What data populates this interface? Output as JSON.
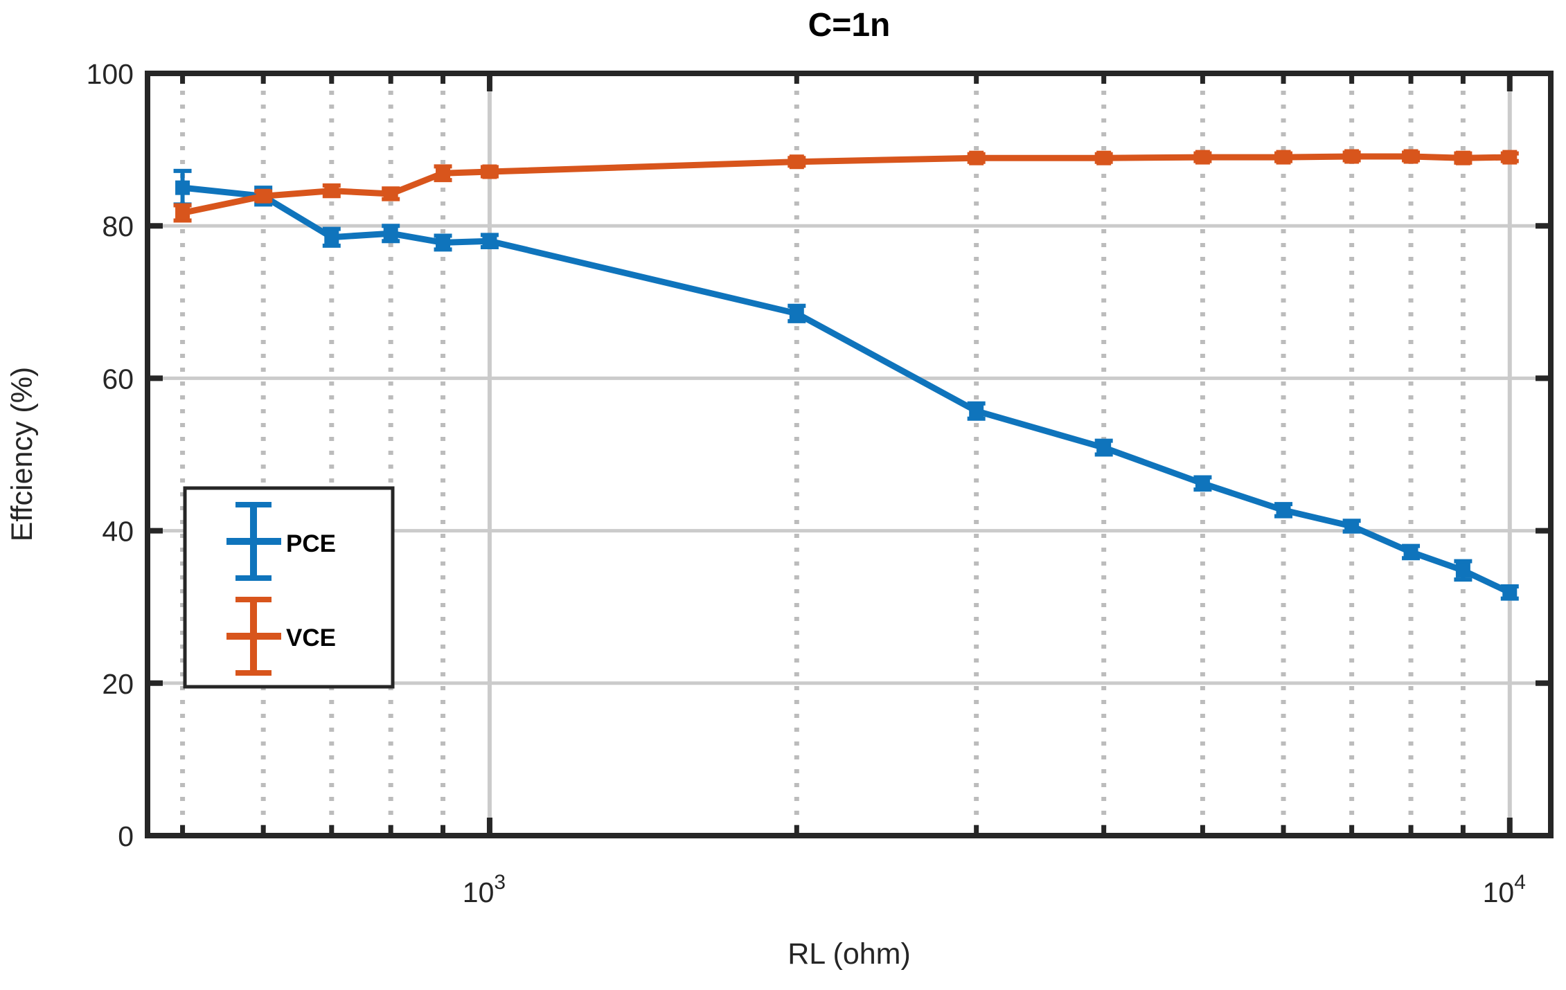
{
  "title": "C=1n",
  "xlabel": "RL (ohm)",
  "ylabel": "Effciency (%)",
  "legend": {
    "items": [
      {
        "label": "PCE",
        "color": "#0f74bc"
      },
      {
        "label": "VCE",
        "color": "#d8551c"
      }
    ]
  },
  "axis": {
    "ytick_labels": [
      "0",
      "20",
      "40",
      "60",
      "80",
      "100"
    ],
    "xtick_labels": [
      {
        "base": "10",
        "exp": "3"
      },
      {
        "base": "10",
        "exp": "4"
      }
    ]
  },
  "colors": {
    "pce": "#0f74bc",
    "vce": "#d8551c",
    "axis": "#262626",
    "grid_minor": "#bcbcbc",
    "grid_major": "#cbcbcb",
    "background": "#ffffff",
    "title_text": "#000000"
  },
  "chart_data": {
    "type": "line",
    "title": "C=1n",
    "xlabel": "RL (ohm)",
    "ylabel": "Effciency (%)",
    "x_scale": "log",
    "xlim": [
      462,
      10970
    ],
    "ylim": [
      0,
      100
    ],
    "grid": true,
    "legend_position": "left-middle",
    "x": [
      500,
      600,
      700,
      800,
      900,
      1000,
      2000,
      3000,
      4000,
      5000,
      6000,
      7000,
      8000,
      9000,
      10000
    ],
    "yticks": [
      0,
      20,
      40,
      60,
      80,
      100
    ],
    "x_major_ticks": [
      1000,
      10000
    ],
    "x_minor_ticks": [
      500,
      600,
      700,
      800,
      900,
      2000,
      3000,
      4000,
      5000,
      6000,
      7000,
      8000,
      9000
    ],
    "series": [
      {
        "name": "PCE",
        "color": "#0f74bc",
        "values": [
          85.0,
          83.9,
          78.5,
          79.0,
          77.8,
          78.0,
          68.5,
          55.7,
          50.9,
          46.2,
          42.7,
          40.6,
          37.2,
          34.8,
          31.9
        ],
        "errors": [
          2.2,
          1.1,
          1.1,
          1.0,
          0.9,
          0.8,
          1.0,
          1.0,
          0.9,
          0.8,
          0.8,
          0.7,
          0.8,
          1.2,
          0.8
        ]
      },
      {
        "name": "VCE",
        "color": "#d8551c",
        "values": [
          81.7,
          83.9,
          84.6,
          84.2,
          86.9,
          87.1,
          88.4,
          88.9,
          88.9,
          89.0,
          89.0,
          89.1,
          89.1,
          88.9,
          89.0
        ],
        "errors": [
          1.0,
          0.6,
          0.7,
          0.7,
          0.9,
          0.6,
          0.5,
          0.5,
          0.5,
          0.5,
          0.5,
          0.5,
          0.5,
          0.6,
          0.5
        ]
      }
    ]
  }
}
